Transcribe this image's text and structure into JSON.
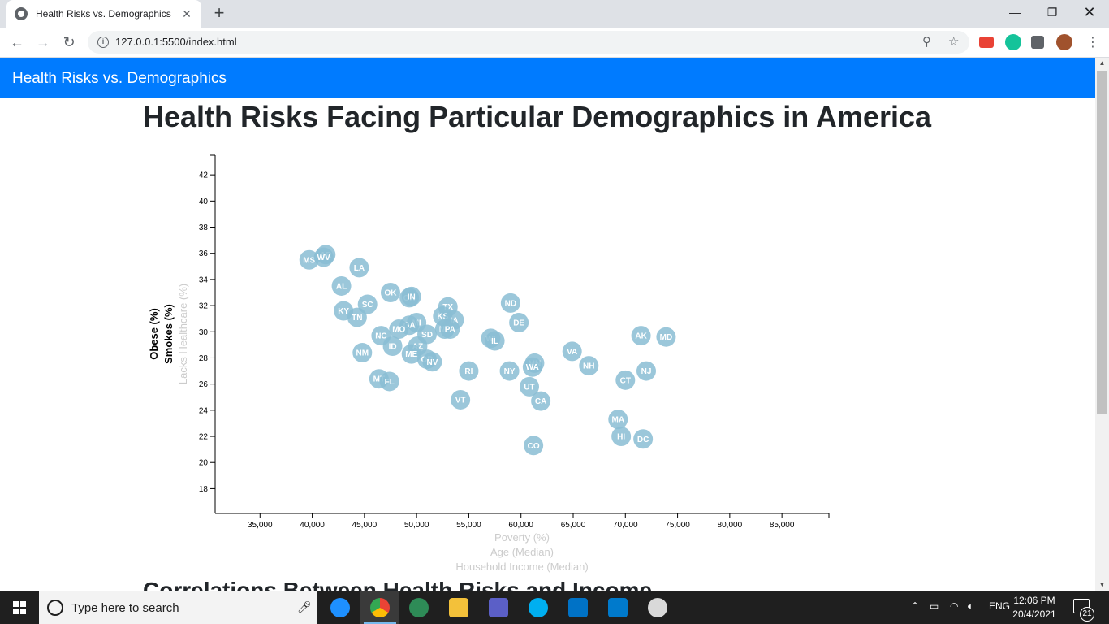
{
  "browser": {
    "tab_title": "Health Risks vs. Demographics",
    "url": "127.0.0.1:5500/index.html"
  },
  "page": {
    "brand": "Health Risks vs. Demographics",
    "heading": "Health Risks Facing Particular Demographics in America",
    "subheading": "Correlations Between Health Risks and Income"
  },
  "chart_data": {
    "type": "scatter",
    "x_tick_labels": [
      "35,000",
      "40,000",
      "45,000",
      "50,000",
      "55,000",
      "60,000",
      "65,000",
      "70,000",
      "75,000",
      "80,000",
      "85,000"
    ],
    "y_tick_labels": [
      "18",
      "20",
      "22",
      "24",
      "26",
      "28",
      "30",
      "32",
      "34",
      "36",
      "38",
      "40",
      "42"
    ],
    "xlim": [
      30700,
      89500
    ],
    "ylim": [
      16.1,
      43.5
    ],
    "y_labels": [
      "Obese (%)",
      "Smokes (%)",
      "Lacks Healthcare (%)"
    ],
    "x_labels": [
      "Poverty (%)",
      "Age (Median)",
      "Household Income (Median)"
    ],
    "active_x": "Household Income (Median)",
    "active_y": "Obese (%)",
    "colors": {
      "marker": "#89bdd3",
      "marker_text": "#ffffff",
      "active_label": "#000000",
      "inactive_label": "#cccccc"
    },
    "points": [
      {
        "abbr": "MS",
        "x": 39700,
        "y": 35.5
      },
      {
        "abbr": "AR",
        "x": 41300,
        "y": 35.9
      },
      {
        "abbr": "WV",
        "x": 41100,
        "y": 35.7
      },
      {
        "abbr": "LA",
        "x": 44500,
        "y": 34.9
      },
      {
        "abbr": "AL",
        "x": 42800,
        "y": 33.5
      },
      {
        "abbr": "OK",
        "x": 47500,
        "y": 33.0
      },
      {
        "abbr": "OH",
        "x": 49300,
        "y": 32.6
      },
      {
        "abbr": "IN",
        "x": 49500,
        "y": 32.7
      },
      {
        "abbr": "SC",
        "x": 45300,
        "y": 32.1
      },
      {
        "abbr": "KY",
        "x": 43000,
        "y": 31.6
      },
      {
        "abbr": "TN",
        "x": 44300,
        "y": 31.1
      },
      {
        "abbr": "TX",
        "x": 53000,
        "y": 31.9
      },
      {
        "abbr": "KS",
        "x": 52500,
        "y": 31.2
      },
      {
        "abbr": "MI",
        "x": 50000,
        "y": 30.7
      },
      {
        "abbr": "IA",
        "x": 53600,
        "y": 30.9
      },
      {
        "abbr": "GA",
        "x": 49300,
        "y": 30.5
      },
      {
        "abbr": "MO",
        "x": 48300,
        "y": 30.2
      },
      {
        "abbr": "NE",
        "x": 52700,
        "y": 30.2
      },
      {
        "abbr": "PA",
        "x": 53200,
        "y": 30.2
      },
      {
        "abbr": "SD",
        "x": 51000,
        "y": 29.8
      },
      {
        "abbr": "NC",
        "x": 46600,
        "y": 29.7
      },
      {
        "abbr": "ND",
        "x": 59000,
        "y": 32.2
      },
      {
        "abbr": "DE",
        "x": 59800,
        "y": 30.7
      },
      {
        "abbr": "WI",
        "x": 57100,
        "y": 29.5
      },
      {
        "abbr": "IL",
        "x": 57500,
        "y": 29.3
      },
      {
        "abbr": "ID",
        "x": 47700,
        "y": 28.9
      },
      {
        "abbr": "AZ",
        "x": 50100,
        "y": 28.9
      },
      {
        "abbr": "ME",
        "x": 49500,
        "y": 28.3
      },
      {
        "abbr": "NM",
        "x": 44800,
        "y": 28.4
      },
      {
        "abbr": "OR",
        "x": 51000,
        "y": 27.9
      },
      {
        "abbr": "NV",
        "x": 51500,
        "y": 27.7
      },
      {
        "abbr": "VA",
        "x": 64900,
        "y": 28.5
      },
      {
        "abbr": "MN",
        "x": 61300,
        "y": 27.6
      },
      {
        "abbr": "WA",
        "x": 61100,
        "y": 27.3
      },
      {
        "abbr": "NH",
        "x": 66500,
        "y": 27.4
      },
      {
        "abbr": "RI",
        "x": 55000,
        "y": 27.0
      },
      {
        "abbr": "NY",
        "x": 58900,
        "y": 27.0
      },
      {
        "abbr": "MT",
        "x": 46400,
        "y": 26.4
      },
      {
        "abbr": "FL",
        "x": 47400,
        "y": 26.2
      },
      {
        "abbr": "UT",
        "x": 60800,
        "y": 25.8
      },
      {
        "abbr": "CA",
        "x": 61900,
        "y": 24.7
      },
      {
        "abbr": "VT",
        "x": 54200,
        "y": 24.8
      },
      {
        "abbr": "AK",
        "x": 71500,
        "y": 29.7
      },
      {
        "abbr": "MD",
        "x": 73900,
        "y": 29.6
      },
      {
        "abbr": "NJ",
        "x": 72000,
        "y": 27.0
      },
      {
        "abbr": "CT",
        "x": 70000,
        "y": 26.3
      },
      {
        "abbr": "MA",
        "x": 69300,
        "y": 23.3
      },
      {
        "abbr": "HI",
        "x": 69600,
        "y": 22.0
      },
      {
        "abbr": "DC",
        "x": 71700,
        "y": 21.8
      },
      {
        "abbr": "CO",
        "x": 61200,
        "y": 21.3
      }
    ]
  },
  "taskbar": {
    "search_placeholder": "Type here to search",
    "language": "ENG",
    "time": "12:06 PM",
    "date": "20/4/2021",
    "notification_count": "21"
  }
}
